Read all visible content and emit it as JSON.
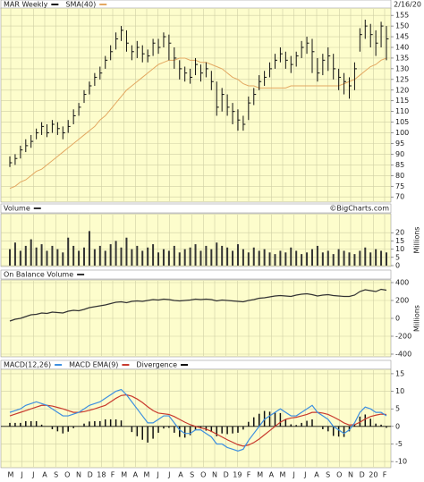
{
  "chart_data": [
    {
      "type": "ohlc",
      "date": "2/16/20",
      "ylim": [
        68,
        158
      ],
      "yticks": [
        70,
        75,
        80,
        85,
        90,
        95,
        100,
        105,
        110,
        115,
        120,
        125,
        130,
        135,
        140,
        145,
        150,
        155
      ],
      "series": [
        {
          "name": "MAR Weekly",
          "color": "#111111",
          "high": [
            89,
            90,
            94,
            97,
            99,
            102,
            105,
            104,
            106,
            105,
            103,
            106,
            111,
            114,
            120,
            124,
            128,
            131,
            136,
            141,
            147,
            150,
            148,
            141,
            143,
            141,
            139,
            144,
            144,
            147,
            146,
            140,
            134,
            131,
            130,
            135,
            132,
            133,
            129,
            124,
            121,
            118,
            114,
            111,
            108,
            117,
            121,
            127,
            129,
            133,
            137,
            140,
            138,
            136,
            138,
            143,
            145,
            144,
            135,
            137,
            140,
            137,
            130,
            128,
            126,
            133,
            149,
            153,
            151,
            148,
            152,
            150
          ],
          "low": [
            84,
            85,
            88,
            91,
            93,
            97,
            99,
            98,
            100,
            99,
            97,
            100,
            104,
            108,
            114,
            118,
            122,
            125,
            130,
            134,
            139,
            143,
            138,
            134,
            135,
            133,
            133,
            136,
            137,
            140,
            134,
            130,
            125,
            124,
            123,
            127,
            124,
            126,
            120,
            108,
            110,
            108,
            104,
            101,
            101,
            106,
            113,
            120,
            122,
            126,
            130,
            133,
            130,
            128,
            131,
            135,
            137,
            128,
            124,
            127,
            129,
            125,
            120,
            118,
            116,
            120,
            138,
            144,
            140,
            136,
            140,
            134
          ],
          "close": [
            86,
            88,
            92,
            94,
            96,
            100,
            103,
            100,
            104,
            102,
            100,
            103,
            108,
            112,
            118,
            122,
            126,
            128,
            134,
            138,
            144,
            148,
            142,
            138,
            140,
            137,
            136,
            142,
            140,
            145,
            142,
            135,
            130,
            128,
            126,
            132,
            128,
            130,
            124,
            112,
            118,
            112,
            110,
            106,
            104,
            114,
            118,
            124,
            126,
            130,
            134,
            137,
            134,
            132,
            136,
            140,
            142,
            138,
            128,
            134,
            136,
            130,
            126,
            124,
            122,
            130,
            146,
            150,
            146,
            142,
            150,
            144
          ]
        },
        {
          "name": "SMA(40)",
          "color": "#e3a862",
          "values": [
            74,
            75,
            77,
            78,
            80,
            82,
            83,
            85,
            87,
            89,
            91,
            93,
            95,
            97,
            99,
            101,
            103,
            106,
            108,
            111,
            114,
            117,
            120,
            122,
            124,
            126,
            128,
            130,
            132,
            133,
            134,
            134,
            135,
            135,
            134,
            134,
            133,
            133,
            132,
            131,
            130,
            128,
            126,
            125,
            123,
            122,
            122,
            121,
            121,
            121,
            121,
            121,
            121,
            122,
            122,
            122,
            122,
            122,
            122,
            122,
            122,
            122,
            122,
            123,
            124,
            125,
            127,
            129,
            131,
            132,
            134,
            135
          ]
        }
      ]
    },
    {
      "type": "bar",
      "title": "Volume",
      "source": "©BigCharts.com",
      "ylabel": "Millions",
      "color": "#333333",
      "ylim": [
        0,
        31
      ],
      "yticks": [
        0,
        5,
        10,
        15,
        20
      ],
      "values": [
        10,
        14,
        9,
        12,
        16,
        11,
        13,
        9,
        12,
        10,
        8,
        17,
        12,
        9,
        11,
        21,
        10,
        12,
        9,
        13,
        15,
        11,
        17,
        10,
        12,
        9,
        11,
        13,
        8,
        10,
        9,
        12,
        8,
        10,
        11,
        13,
        9,
        12,
        10,
        14,
        12,
        11,
        9,
        13,
        10,
        8,
        11,
        9,
        10,
        8,
        7,
        9,
        8,
        11,
        9,
        7,
        8,
        10,
        12,
        8,
        9,
        7,
        10,
        9,
        8,
        7,
        9,
        11,
        8,
        10,
        9,
        8
      ]
    },
    {
      "type": "line",
      "title": "On Balance Volume",
      "ylabel": "Millions",
      "color": "#333333",
      "ylim": [
        -420,
        420
      ],
      "yticks": [
        -400,
        -200,
        0,
        200,
        400
      ],
      "values": [
        -30,
        -10,
        0,
        20,
        40,
        45,
        60,
        55,
        70,
        65,
        60,
        80,
        90,
        85,
        100,
        120,
        130,
        140,
        150,
        165,
        180,
        185,
        175,
        190,
        195,
        190,
        200,
        210,
        205,
        215,
        210,
        200,
        195,
        200,
        205,
        215,
        210,
        215,
        210,
        195,
        205,
        200,
        195,
        190,
        185,
        200,
        210,
        225,
        230,
        240,
        250,
        255,
        250,
        245,
        260,
        270,
        275,
        265,
        250,
        260,
        265,
        255,
        250,
        245,
        245,
        260,
        300,
        320,
        310,
        300,
        325,
        315
      ]
    },
    {
      "type": "macd",
      "ylim": [
        -11.5,
        16
      ],
      "yticks": [
        -10,
        -5,
        0,
        5,
        10,
        15
      ],
      "xtick_labels": [
        "M",
        "J",
        "J",
        "A",
        "S",
        "O",
        "N",
        "D",
        "18",
        "F",
        "M",
        "A",
        "M",
        "J",
        "J",
        "A",
        "S",
        "O",
        "N",
        "D",
        "19",
        "F",
        "M",
        "A",
        "M",
        "J",
        "J",
        "A",
        "S",
        "O",
        "N",
        "D",
        "20",
        "F"
      ],
      "series": [
        {
          "name": "MACD(12,26)",
          "color": "#3d8fe0",
          "values": [
            4,
            4.5,
            5,
            6,
            6.5,
            7,
            6.5,
            6,
            5,
            4,
            3,
            3,
            3.5,
            4,
            5,
            6,
            6.5,
            7,
            8,
            9,
            10,
            10.5,
            9,
            7,
            5,
            3,
            1,
            1,
            2,
            3,
            3,
            1,
            -1,
            -2,
            -2,
            -1,
            -1,
            -2,
            -3,
            -5,
            -5,
            -6,
            -6.5,
            -7,
            -6.5,
            -4,
            -2,
            0,
            2,
            3,
            4,
            5,
            4,
            3,
            3,
            4,
            5,
            6,
            4,
            3,
            2,
            0,
            -1,
            -2,
            -1,
            1,
            4,
            5.5,
            5,
            4,
            4,
            3
          ]
        },
        {
          "name": "MACD EMA(9)",
          "color": "#c83a2e",
          "values": [
            3,
            3.5,
            4,
            4.5,
            5,
            5.5,
            6,
            6,
            5.8,
            5.4,
            5,
            4.5,
            4,
            4,
            4.2,
            4.6,
            5,
            5.5,
            6,
            7,
            8,
            8.8,
            9,
            8.6,
            7.8,
            6.8,
            5.6,
            4.5,
            3.8,
            3.6,
            3.4,
            2.8,
            2,
            1.2,
            0.5,
            0,
            -0.4,
            -0.8,
            -1.4,
            -2.2,
            -3,
            -3.8,
            -4.5,
            -5.2,
            -5.6,
            -5.3,
            -4.6,
            -3.6,
            -2.4,
            -1.2,
            0,
            1.2,
            2,
            2.4,
            2.6,
            3,
            3.4,
            4,
            4,
            3.8,
            3.4,
            2.7,
            1.9,
            1,
            0.4,
            0.5,
            1.2,
            2.1,
            2.8,
            3.2,
            3.5,
            3.4
          ]
        },
        {
          "name": "Divergence",
          "color": "#111111",
          "values": [
            1,
            1,
            1,
            1.5,
            1.5,
            1.5,
            0.5,
            0,
            -0.8,
            -1.4,
            -2,
            -1.5,
            -0.5,
            0,
            0.8,
            1.4,
            1.5,
            1.5,
            2,
            2,
            2,
            1.7,
            0,
            -1.6,
            -2.8,
            -3.8,
            -4.6,
            -3.5,
            -1.8,
            -0.6,
            -0.4,
            -1.8,
            -3,
            -3.2,
            -2.5,
            -1,
            -0.6,
            -1.2,
            -1.6,
            -2.8,
            -2,
            -2.2,
            -2,
            -1.8,
            -0.9,
            1.3,
            2.6,
            3.6,
            4.4,
            4.2,
            4,
            3.8,
            2,
            0.6,
            0.4,
            1,
            1.6,
            2,
            0,
            -0.8,
            -1.4,
            -2.7,
            -2.9,
            -3,
            -1.4,
            0.5,
            2.8,
            3.4,
            2.2,
            0.8,
            0.5,
            -0.4
          ]
        }
      ]
    }
  ]
}
